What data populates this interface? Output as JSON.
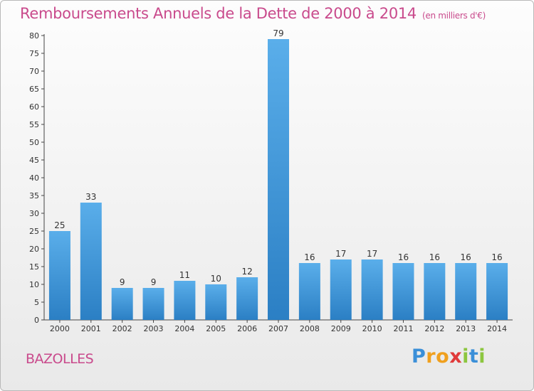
{
  "chart_data": {
    "type": "bar",
    "title": "Remboursements Annuels de la Dette de 2000 à 2014",
    "subtitle": "(en milliers d'€)",
    "categories": [
      "2000",
      "2001",
      "2002",
      "2003",
      "2004",
      "2005",
      "2006",
      "2007",
      "2008",
      "2009",
      "2010",
      "2011",
      "2012",
      "2013",
      "2014"
    ],
    "values": [
      25,
      33,
      9,
      9,
      11,
      10,
      12,
      79,
      16,
      17,
      17,
      16,
      16,
      16,
      16
    ],
    "ylim": [
      0,
      80
    ],
    "yticks": [
      0,
      5,
      10,
      15,
      20,
      25,
      30,
      35,
      40,
      45,
      50,
      55,
      60,
      65,
      70,
      75,
      80
    ],
    "grid": false,
    "bar_color_top": "#5aaeea",
    "bar_color_bottom": "#2b7fc4"
  },
  "footer": {
    "commune": "BAZOLLES",
    "logo_letters": [
      "P",
      "r",
      "o",
      "x",
      "i",
      "t",
      "i"
    ]
  }
}
